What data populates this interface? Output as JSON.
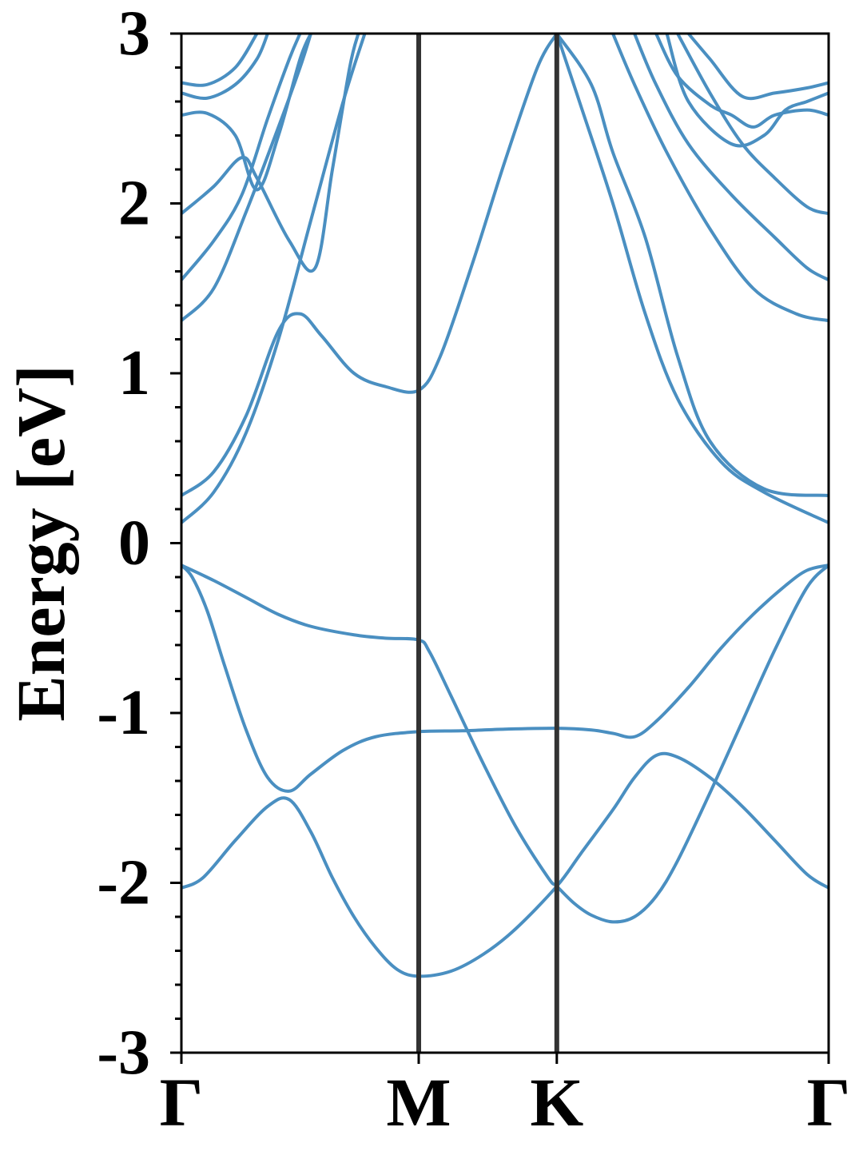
{
  "chart_data": {
    "type": "line",
    "title": "",
    "xlabel": "",
    "ylabel": "Energy [eV]",
    "ylim": [
      -3,
      3
    ],
    "y_major_ticks": [
      -3,
      -2,
      -1,
      0,
      1,
      2,
      3
    ],
    "y_tick_labels": [
      "-3",
      "-2",
      "-1",
      "0",
      "1",
      "2",
      "3"
    ],
    "y_minor_step": 0.2,
    "x_range": [
      0,
      3.0
    ],
    "high_symmetry_points": [
      {
        "label": "Γ",
        "x": 0.0
      },
      {
        "label": "M",
        "x": 1.1
      },
      {
        "label": "K",
        "x": 1.74
      },
      {
        "label": "Γ",
        "x": 3.0
      }
    ],
    "grid": false,
    "line_color": "#4a8fc1",
    "divider_color": "#333333",
    "series": [
      {
        "points": [
          [
            0,
            -0.13
          ],
          [
            0.15,
            -0.22
          ],
          [
            0.3,
            -0.32
          ],
          [
            0.45,
            -0.42
          ],
          [
            0.6,
            -0.49
          ],
          [
            0.8,
            -0.54
          ],
          [
            0.95,
            -0.56
          ],
          [
            1.1,
            -0.57
          ],
          [
            1.15,
            -0.64
          ],
          [
            1.25,
            -0.9
          ],
          [
            1.4,
            -1.3
          ],
          [
            1.55,
            -1.67
          ],
          [
            1.7,
            -1.97
          ],
          [
            1.74,
            -2.02
          ],
          [
            1.82,
            -2.12
          ],
          [
            1.9,
            -2.19
          ],
          [
            2.0,
            -2.23
          ],
          [
            2.1,
            -2.2
          ],
          [
            2.2,
            -2.08
          ],
          [
            2.3,
            -1.87
          ],
          [
            2.45,
            -1.47
          ],
          [
            2.6,
            -1.05
          ],
          [
            2.75,
            -0.63
          ],
          [
            2.9,
            -0.26
          ],
          [
            3.0,
            -0.13
          ]
        ]
      },
      {
        "points": [
          [
            0,
            -0.13
          ],
          [
            0.05,
            -0.2
          ],
          [
            0.12,
            -0.4
          ],
          [
            0.2,
            -0.72
          ],
          [
            0.3,
            -1.1
          ],
          [
            0.4,
            -1.38
          ],
          [
            0.5,
            -1.46
          ],
          [
            0.6,
            -1.36
          ],
          [
            0.75,
            -1.22
          ],
          [
            0.9,
            -1.14
          ],
          [
            1.1,
            -1.11
          ],
          [
            1.3,
            -1.105
          ],
          [
            1.5,
            -1.095
          ],
          [
            1.74,
            -1.09
          ],
          [
            1.9,
            -1.1
          ],
          [
            2.0,
            -1.12
          ],
          [
            2.1,
            -1.14
          ],
          [
            2.2,
            -1.05
          ],
          [
            2.35,
            -0.85
          ],
          [
            2.5,
            -0.62
          ],
          [
            2.65,
            -0.42
          ],
          [
            2.8,
            -0.25
          ],
          [
            2.9,
            -0.16
          ],
          [
            3.0,
            -0.13
          ]
        ]
      },
      {
        "points": [
          [
            0,
            -2.03
          ],
          [
            0.1,
            -1.97
          ],
          [
            0.25,
            -1.75
          ],
          [
            0.4,
            -1.55
          ],
          [
            0.5,
            -1.51
          ],
          [
            0.6,
            -1.7
          ],
          [
            0.7,
            -1.97
          ],
          [
            0.8,
            -2.2
          ],
          [
            0.9,
            -2.38
          ],
          [
            1.0,
            -2.51
          ],
          [
            1.1,
            -2.55
          ],
          [
            1.25,
            -2.52
          ],
          [
            1.4,
            -2.42
          ],
          [
            1.55,
            -2.27
          ],
          [
            1.74,
            -2.02
          ],
          [
            1.85,
            -1.83
          ],
          [
            2.0,
            -1.57
          ],
          [
            2.1,
            -1.38
          ],
          [
            2.2,
            -1.25
          ],
          [
            2.3,
            -1.26
          ],
          [
            2.45,
            -1.38
          ],
          [
            2.6,
            -1.55
          ],
          [
            2.75,
            -1.75
          ],
          [
            2.9,
            -1.95
          ],
          [
            3.0,
            -2.03
          ]
        ]
      },
      {
        "points": [
          [
            0,
            0.12
          ],
          [
            0.15,
            0.3
          ],
          [
            0.3,
            0.65
          ],
          [
            0.45,
            1.2
          ],
          [
            0.6,
            1.9
          ],
          [
            0.75,
            2.6
          ],
          [
            0.85,
            3.0
          ]
        ]
      },
      {
        "points": [
          [
            0,
            0.28
          ],
          [
            0.15,
            0.42
          ],
          [
            0.3,
            0.75
          ],
          [
            0.45,
            1.25
          ],
          [
            0.55,
            1.35
          ],
          [
            0.65,
            1.22
          ],
          [
            0.8,
            1.0
          ],
          [
            0.95,
            0.92
          ],
          [
            1.1,
            0.9
          ],
          [
            1.2,
            1.1
          ],
          [
            1.35,
            1.65
          ],
          [
            1.5,
            2.25
          ],
          [
            1.65,
            2.8
          ],
          [
            1.74,
            3.0
          ]
        ]
      },
      {
        "points": [
          [
            1.74,
            3.0
          ],
          [
            1.85,
            2.58
          ],
          [
            2.0,
            2.0
          ],
          [
            2.15,
            1.35
          ],
          [
            2.3,
            0.85
          ],
          [
            2.5,
            0.48
          ],
          [
            2.7,
            0.3
          ],
          [
            3.0,
            0.12
          ]
        ]
      },
      {
        "points": [
          [
            1.74,
            3.0
          ],
          [
            1.9,
            2.7
          ],
          [
            2.0,
            2.3
          ],
          [
            2.15,
            1.8
          ],
          [
            2.3,
            1.1
          ],
          [
            2.45,
            0.6
          ],
          [
            2.7,
            0.32
          ],
          [
            3.0,
            0.28
          ]
        ]
      },
      {
        "points": [
          [
            0,
            1.31
          ],
          [
            0.15,
            1.5
          ],
          [
            0.3,
            1.95
          ],
          [
            0.45,
            2.45
          ],
          [
            0.55,
            2.8
          ],
          [
            0.6,
            3.0
          ]
        ]
      },
      {
        "points": [
          [
            0,
            1.55
          ],
          [
            0.15,
            1.78
          ],
          [
            0.28,
            2.05
          ],
          [
            0.4,
            2.5
          ],
          [
            0.5,
            2.85
          ],
          [
            0.55,
            3.0
          ]
        ]
      },
      {
        "points": [
          [
            0,
            1.94
          ],
          [
            0.15,
            2.1
          ],
          [
            0.28,
            2.27
          ],
          [
            0.35,
            2.15
          ],
          [
            0.5,
            1.78
          ],
          [
            0.62,
            1.62
          ],
          [
            0.7,
            2.2
          ],
          [
            0.78,
            2.8
          ],
          [
            0.82,
            3.0
          ]
        ]
      },
      {
        "points": [
          [
            0,
            2.52
          ],
          [
            0.12,
            2.53
          ],
          [
            0.25,
            2.4
          ],
          [
            0.35,
            2.08
          ],
          [
            0.45,
            2.4
          ],
          [
            0.55,
            2.85
          ],
          [
            0.6,
            3.0
          ]
        ]
      },
      {
        "points": [
          [
            0,
            2.65
          ],
          [
            0.12,
            2.62
          ],
          [
            0.25,
            2.7
          ],
          [
            0.35,
            2.85
          ],
          [
            0.4,
            3.0
          ]
        ]
      },
      {
        "points": [
          [
            0,
            2.71
          ],
          [
            0.12,
            2.7
          ],
          [
            0.25,
            2.8
          ],
          [
            0.35,
            3.0
          ]
        ]
      },
      {
        "points": [
          [
            2.1,
            3.0
          ],
          [
            2.2,
            2.7
          ],
          [
            2.35,
            2.35
          ],
          [
            2.55,
            2.05
          ],
          [
            2.75,
            1.8
          ],
          [
            2.9,
            1.62
          ],
          [
            3.0,
            1.55
          ]
        ]
      },
      {
        "points": [
          [
            2.0,
            3.0
          ],
          [
            2.1,
            2.7
          ],
          [
            2.25,
            2.3
          ],
          [
            2.45,
            1.85
          ],
          [
            2.65,
            1.5
          ],
          [
            2.85,
            1.35
          ],
          [
            3.0,
            1.31
          ]
        ]
      },
      {
        "points": [
          [
            2.3,
            3.0
          ],
          [
            2.45,
            2.65
          ],
          [
            2.6,
            2.35
          ],
          [
            2.75,
            2.15
          ],
          [
            2.9,
            1.98
          ],
          [
            3.0,
            1.94
          ]
        ]
      },
      {
        "points": [
          [
            2.2,
            3.0
          ],
          [
            2.3,
            2.75
          ],
          [
            2.45,
            2.58
          ],
          [
            2.55,
            2.52
          ],
          [
            2.65,
            2.45
          ],
          [
            2.75,
            2.52
          ],
          [
            2.9,
            2.55
          ],
          [
            3.0,
            2.52
          ]
        ]
      },
      {
        "points": [
          [
            2.25,
            3.0
          ],
          [
            2.35,
            2.6
          ],
          [
            2.55,
            2.35
          ],
          [
            2.7,
            2.4
          ],
          [
            2.8,
            2.55
          ],
          [
            2.9,
            2.6
          ],
          [
            3.0,
            2.65
          ]
        ]
      },
      {
        "points": [
          [
            2.35,
            3.0
          ],
          [
            2.45,
            2.85
          ],
          [
            2.6,
            2.63
          ],
          [
            2.75,
            2.65
          ],
          [
            2.9,
            2.68
          ],
          [
            3.0,
            2.71
          ]
        ]
      }
    ]
  }
}
